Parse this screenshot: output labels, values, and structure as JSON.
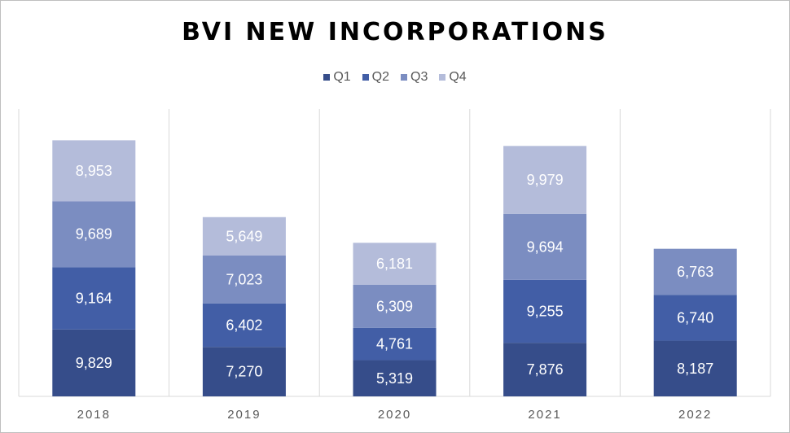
{
  "chart_data": {
    "type": "bar",
    "stacked": true,
    "title": "BVI NEW INCORPORATIONS",
    "categories": [
      "2018",
      "2019",
      "2020",
      "2021",
      "2022"
    ],
    "series": [
      {
        "name": "Q1",
        "color": "#364d8a",
        "values": [
          9829,
          7270,
          5319,
          7876,
          8187
        ]
      },
      {
        "name": "Q2",
        "color": "#425ea6",
        "values": [
          9164,
          6402,
          4761,
          9255,
          6740
        ]
      },
      {
        "name": "Q3",
        "color": "#7b8dc1",
        "values": [
          9689,
          7023,
          6309,
          9694,
          6763
        ]
      },
      {
        "name": "Q4",
        "color": "#b4bcda",
        "values": [
          8953,
          5649,
          6181,
          9979,
          null
        ]
      }
    ],
    "value_labels": [
      [
        "9,829",
        "7,270",
        "5,319",
        "7,876",
        "8,187"
      ],
      [
        "9,164",
        "6,402",
        "4,761",
        "9,255",
        "6,740"
      ],
      [
        "9,689",
        "7,023",
        "6,309",
        "9,694",
        "6,763"
      ],
      [
        "8,953",
        "5,649",
        "6,181",
        "9,979",
        ""
      ]
    ],
    "ylim": [
      0,
      40000
    ],
    "grid": "vertical separators",
    "legend": "top"
  }
}
